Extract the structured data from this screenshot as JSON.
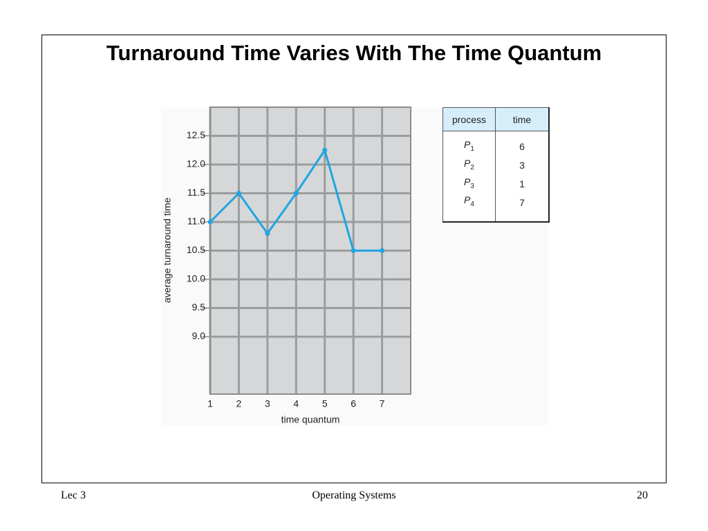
{
  "title": "Turnaround Time Varies With The Time Quantum",
  "chart_data": {
    "type": "line",
    "x_label": "time quantum",
    "y_label": "average turnaround time",
    "x": [
      1,
      2,
      3,
      4,
      5,
      6,
      7
    ],
    "series": [
      {
        "name": "average turnaround time",
        "color": "#1ea5e3",
        "values": [
          11.0,
          11.5,
          10.8,
          11.5,
          12.25,
          10.5,
          10.5
        ]
      }
    ],
    "xlim": [
      1,
      8
    ],
    "xticks": [
      1,
      2,
      3,
      4,
      5,
      6,
      7
    ],
    "ylim": [
      8.0,
      13.0
    ],
    "yticks": [
      {
        "value": 9,
        "label": "9.0"
      },
      9.5,
      {
        "value": 10,
        "label": "10.0"
      },
      10.5,
      {
        "value": 11,
        "label": "11.0"
      },
      11.5,
      {
        "value": 12,
        "label": "12.0"
      },
      12.5
    ],
    "grid": true
  },
  "table": {
    "header": [
      "process",
      "time"
    ],
    "rows": [
      [
        {
          "letter": "P",
          "sub": "1"
        },
        "6"
      ],
      [
        {
          "letter": "P",
          "sub": "2"
        },
        "3"
      ],
      [
        {
          "letter": "P",
          "sub": "3"
        },
        "1"
      ],
      [
        {
          "letter": "P",
          "sub": "4"
        },
        "7"
      ]
    ]
  },
  "footer": {
    "left": "Lec 3",
    "center": "Operating Systems",
    "right": "20"
  }
}
